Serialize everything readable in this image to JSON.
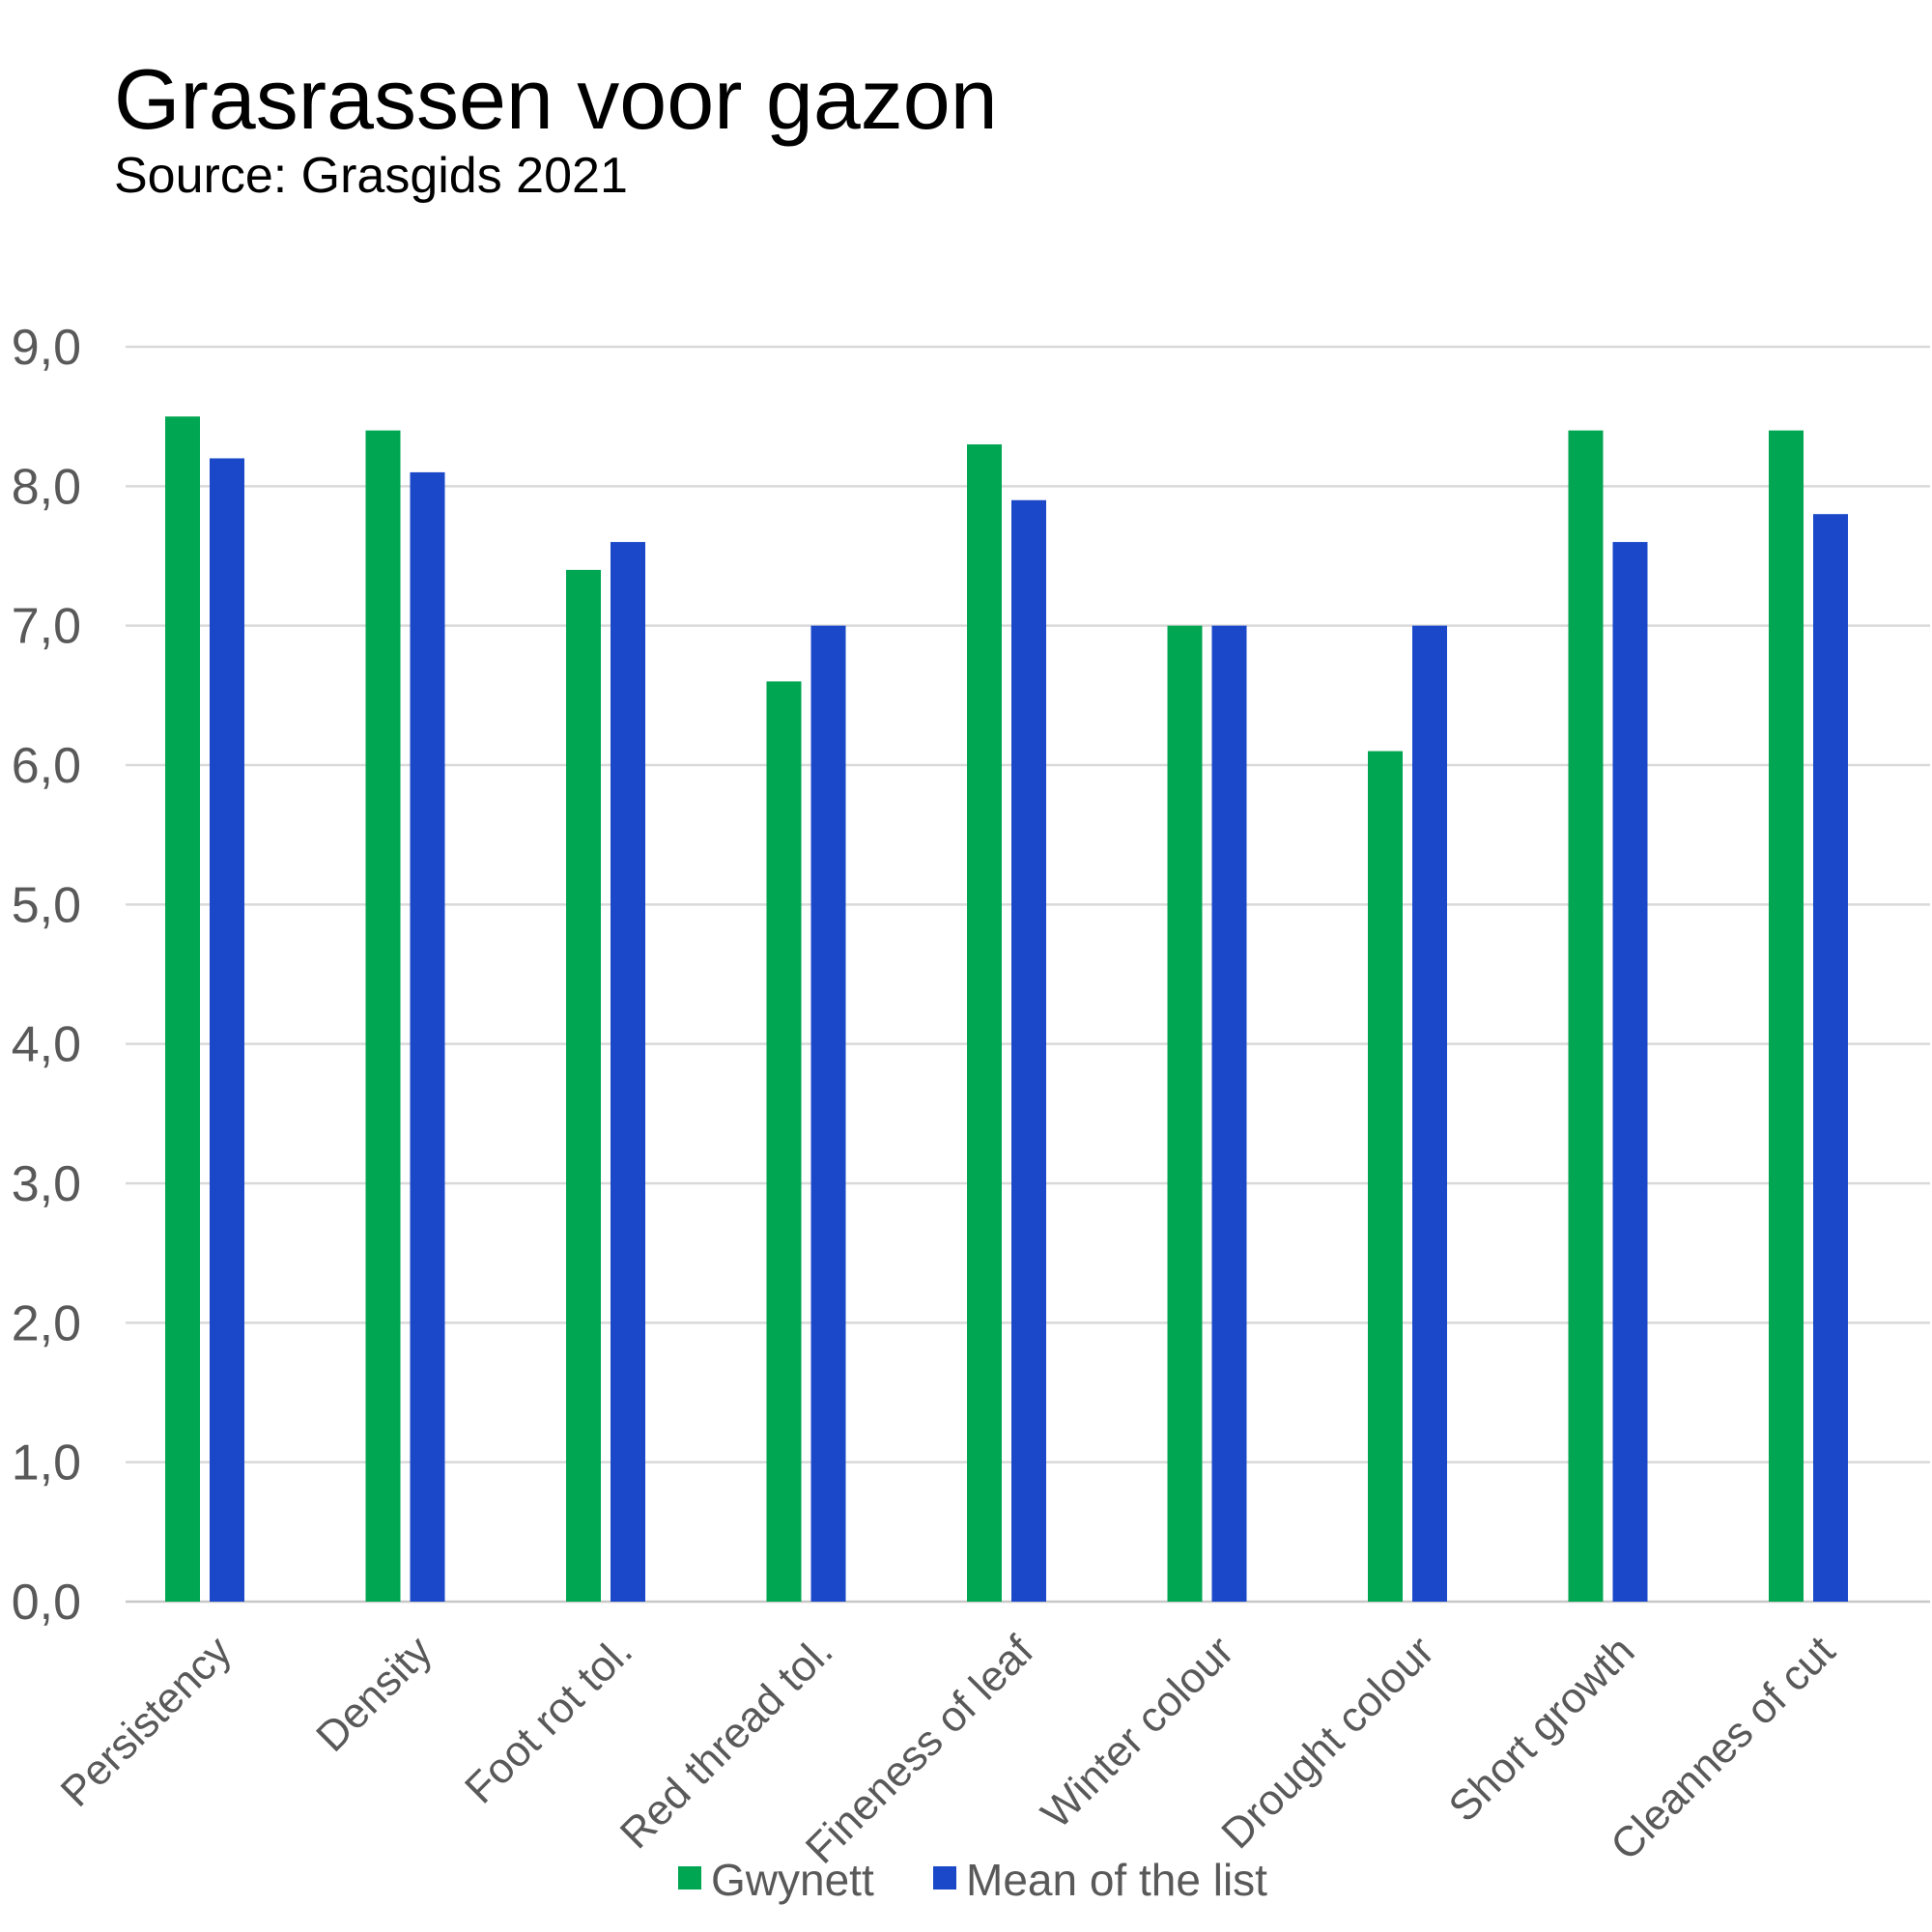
{
  "chart_data": {
    "type": "bar",
    "title": "Grasrassen voor gazon",
    "subtitle": "Source: Grasgids 2021",
    "xlabel": "",
    "ylabel": "",
    "ylim": [
      0,
      9
    ],
    "yticks": [
      "0,0",
      "1,0",
      "2,0",
      "3,0",
      "4,0",
      "5,0",
      "6,0",
      "7,0",
      "8,0",
      "9,0"
    ],
    "grid": true,
    "legend_position": "bottom",
    "categories": [
      "Persistency",
      "Density",
      "Foot rot tol.",
      "Red thread tol.",
      "Fineness of leaf",
      "Winter colour",
      "Drought colour",
      "Short growth",
      "Cleannes of cut"
    ],
    "series": [
      {
        "name": "Gwynett",
        "color": "#00A651",
        "values": [
          8.5,
          8.4,
          7.4,
          6.6,
          8.3,
          7.0,
          6.1,
          8.4,
          8.4
        ]
      },
      {
        "name": "Mean of the list",
        "color": "#1A48C9",
        "values": [
          8.2,
          8.1,
          7.6,
          7.0,
          7.9,
          7.0,
          7.0,
          7.6,
          7.8
        ]
      }
    ]
  }
}
